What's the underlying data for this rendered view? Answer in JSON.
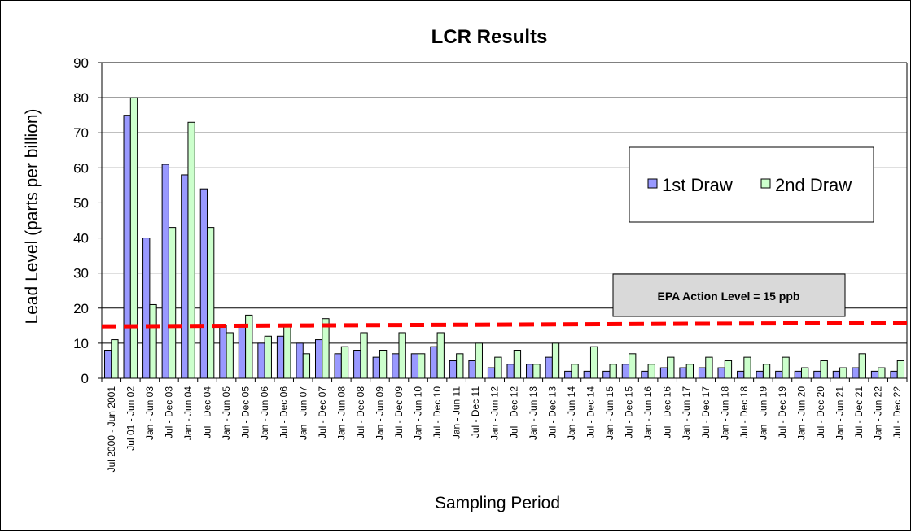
{
  "chart_data": {
    "type": "bar",
    "title": "LCR Results",
    "xlabel": "Sampling Period",
    "ylabel": "Lead Level (parts per billion)",
    "ylim": [
      0,
      90
    ],
    "yticks": [
      0,
      10,
      20,
      30,
      40,
      50,
      60,
      70,
      80,
      90
    ],
    "grid": true,
    "legend_position": "top-right",
    "categories": [
      "Jul 2000 - Jun 2001",
      "Jul 01 - Jun 02",
      "Jan - Jun 03",
      "Jul - Dec 03",
      "Jan - Jun 04",
      "Jul - Dec 04",
      "Jan - Jun 05",
      "Jul - Dec 05",
      "Jan - Jun 06",
      "Jul - Dec 06",
      "Jan - Jun 07",
      "Jul - Dec 07",
      "Jan - Jun 08",
      "Jul - Dec 08",
      "Jan - Jun 09",
      "Jul - Dec 09",
      "Jan - Jun 10",
      "Jul - Dec 10",
      "Jan - Jun 11",
      "Jul - Dec 11",
      "Jan - Jun 12",
      "Jul - Dec 12",
      "Jan - Jun 13",
      "Jul - Dec 13",
      "Jan - Jun 14",
      "Jul - Dec 14",
      "Jan - Jun 15",
      "Jul - Dec 15",
      "Jan - Jun 16",
      "Jul - Dec 16",
      "Jan - Jun 17",
      "Jul - Dec 17",
      "Jan - Jun 18",
      "Jul - Dec 18",
      "Jan - Jun 19",
      "Jul - Dec 19",
      "Jan - Jun 20",
      "Jul - Dec 20",
      "Jan - Jun 21",
      "Jul - Dec 21",
      "Jan - Jun 22",
      "Jul - Dec 22"
    ],
    "series": [
      {
        "name": "1st Draw",
        "color": "#9999ff",
        "values": [
          8,
          75,
          40,
          61,
          58,
          54,
          15,
          15,
          10,
          12,
          10,
          11,
          7,
          8,
          6,
          7,
          7,
          9,
          5,
          5,
          3,
          4,
          4,
          6,
          2,
          2,
          2,
          4,
          2,
          3,
          3,
          3,
          3,
          2,
          2,
          2,
          2,
          2,
          2,
          3,
          2,
          2
        ]
      },
      {
        "name": "2nd Draw",
        "color": "#ccffcc",
        "values": [
          11,
          80,
          21,
          43,
          73,
          43,
          13,
          18,
          12,
          15,
          7,
          17,
          9,
          13,
          8,
          13,
          7,
          13,
          7,
          10,
          6,
          8,
          4,
          10,
          4,
          9,
          4,
          7,
          4,
          6,
          4,
          6,
          5,
          6,
          4,
          6,
          3,
          5,
          3,
          7,
          3,
          5
        ]
      }
    ],
    "reference_line": {
      "label": "EPA Action Level = 15 ppb",
      "start_value": 14.8,
      "end_value": 15.8,
      "color": "#ff0000"
    }
  }
}
